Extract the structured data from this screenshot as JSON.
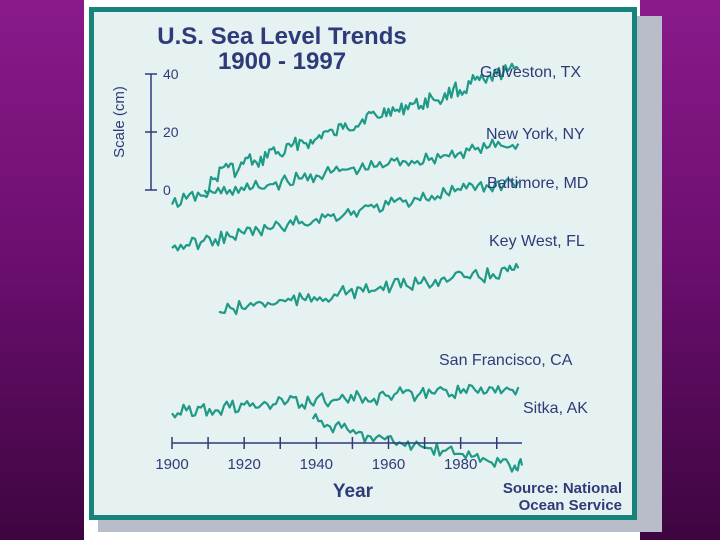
{
  "chart_data": {
    "type": "line",
    "title": "U.S. Sea Level Trends",
    "subtitle": "1900 - 1997",
    "xlabel": "Year",
    "scale_label": "Scale (cm)",
    "scale_ticks": [
      "40",
      "20",
      "0"
    ],
    "scale_values": [
      40,
      20,
      0
    ],
    "x_ticks": [
      "1900",
      "1920",
      "1940",
      "1960",
      "1980"
    ],
    "x_tick_values": [
      1900,
      1920,
      1940,
      1960,
      1980
    ],
    "xlim": [
      1900,
      1997
    ],
    "source": [
      "Source: National",
      "Ocean Service"
    ],
    "line_color": "#1e9a86",
    "text_color": "#2f3b78",
    "frame_color": "#17847c",
    "series": [
      {
        "name": "Galveston, TX",
        "x": [
          1909,
          1912,
          1915,
          1918,
          1921,
          1924,
          1927,
          1930,
          1933,
          1936,
          1939,
          1942,
          1945,
          1948,
          1951,
          1954,
          1957,
          1960,
          1963,
          1966,
          1969,
          1972,
          1975,
          1978,
          1981,
          1984,
          1987,
          1990,
          1993,
          1996
        ],
        "y": [
          0,
          4,
          9,
          6,
          11,
          8,
          14,
          12,
          15,
          17,
          16,
          20,
          19,
          23,
          22,
          26,
          25,
          28,
          27,
          30,
          29,
          32,
          31,
          35,
          34,
          38,
          37,
          40,
          41,
          42
        ]
      },
      {
        "name": "New York, NY",
        "x": [
          1900,
          1904,
          1908,
          1912,
          1916,
          1920,
          1924,
          1928,
          1932,
          1936,
          1940,
          1944,
          1948,
          1952,
          1956,
          1960,
          1964,
          1968,
          1972,
          1976,
          1980,
          1984,
          1988,
          1992,
          1996
        ],
        "y": [
          -5,
          -3,
          -2,
          -1,
          0,
          0,
          1,
          2,
          3,
          4,
          5,
          6,
          7,
          7,
          8,
          9,
          10,
          10,
          11,
          12,
          13,
          14,
          15,
          15,
          16
        ]
      },
      {
        "name": "Baltimore, MD",
        "x": [
          1900,
          1904,
          1908,
          1912,
          1916,
          1920,
          1924,
          1928,
          1932,
          1936,
          1940,
          1944,
          1948,
          1952,
          1956,
          1960,
          1964,
          1968,
          1972,
          1976,
          1980,
          1984,
          1988,
          1992,
          1996
        ],
        "y": [
          -20,
          -19,
          -18,
          -17,
          -16,
          -15,
          -14,
          -13,
          -12,
          -11,
          -10,
          -9,
          -8,
          -7,
          -6,
          -5,
          -4,
          -3,
          -2,
          -1,
          0,
          0,
          1,
          2,
          3
        ]
      },
      {
        "name": "Key West, FL",
        "x": [
          1913,
          1917,
          1921,
          1925,
          1929,
          1933,
          1937,
          1941,
          1945,
          1949,
          1953,
          1957,
          1961,
          1965,
          1969,
          1973,
          1977,
          1981,
          1985,
          1989,
          1993,
          1996
        ],
        "y": [
          -42,
          -41,
          -40,
          -39,
          -39,
          -38,
          -38,
          -37,
          -36,
          -35,
          -35,
          -34,
          -33,
          -33,
          -32,
          -31,
          -31,
          -30,
          -30,
          -29,
          -28,
          -27
        ]
      },
      {
        "name": "San Francisco, CA",
        "x": [
          1900,
          1904,
          1908,
          1912,
          1916,
          1920,
          1924,
          1928,
          1932,
          1936,
          1940,
          1944,
          1948,
          1952,
          1956,
          1960,
          1964,
          1968,
          1972,
          1976,
          1980,
          1984,
          1988,
          1992,
          1996
        ],
        "y": [
          -77,
          -76,
          -75,
          -76,
          -75,
          -74,
          -75,
          -74,
          -73,
          -74,
          -72,
          -73,
          -72,
          -71,
          -72,
          -71,
          -70,
          -71,
          -70,
          -69,
          -70,
          -69,
          -68,
          -69,
          -68
        ]
      },
      {
        "name": "Sitka, AK",
        "x": [
          1939,
          1943,
          1947,
          1951,
          1955,
          1959,
          1963,
          1967,
          1971,
          1975,
          1979,
          1983,
          1987,
          1991,
          1995,
          1997
        ],
        "y": [
          -79,
          -81,
          -82,
          -84,
          -85,
          -86,
          -87,
          -88,
          -89,
          -90,
          -91,
          -92,
          -93,
          -94,
          -95,
          -95
        ]
      }
    ]
  }
}
